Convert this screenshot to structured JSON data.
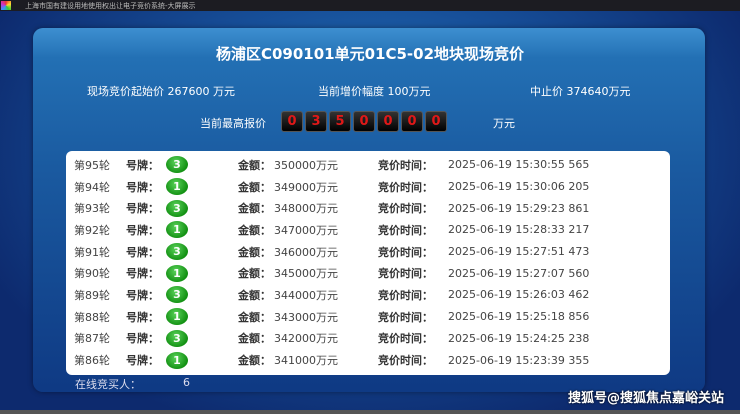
{
  "window": {
    "title": "上海市国有建设用地使用权出让电子竞价系统-大屏展示"
  },
  "heading": "杨浦区C090101单元01C5-02地块现场竞价",
  "info": {
    "start_price": "现场竞价起始价 267600 万元",
    "increment": "当前增价幅度 100万元",
    "stop_price": "中止价 374640万元"
  },
  "highest": {
    "label": "当前最高报价",
    "digits": [
      "0",
      "3",
      "5",
      "0",
      "0",
      "0",
      "0"
    ],
    "unit": "万元"
  },
  "labels": {
    "plate": "号牌：",
    "amount": "金额：",
    "time": "竞价时间："
  },
  "bids": [
    {
      "round": "第95轮",
      "plate": "3",
      "amount": "350000万元",
      "time": "2025-06-19 15:30:55 565"
    },
    {
      "round": "第94轮",
      "plate": "1",
      "amount": "349000万元",
      "time": "2025-06-19 15:30:06 205"
    },
    {
      "round": "第93轮",
      "plate": "3",
      "amount": "348000万元",
      "time": "2025-06-19 15:29:23 861"
    },
    {
      "round": "第92轮",
      "plate": "1",
      "amount": "347000万元",
      "time": "2025-06-19 15:28:33 217"
    },
    {
      "round": "第91轮",
      "plate": "3",
      "amount": "346000万元",
      "time": "2025-06-19 15:27:51 473"
    },
    {
      "round": "第90轮",
      "plate": "1",
      "amount": "345000万元",
      "time": "2025-06-19 15:27:07 560"
    },
    {
      "round": "第89轮",
      "plate": "3",
      "amount": "344000万元",
      "time": "2025-06-19 15:26:03 462"
    },
    {
      "round": "第88轮",
      "plate": "1",
      "amount": "343000万元",
      "time": "2025-06-19 15:25:18 856"
    },
    {
      "round": "第87轮",
      "plate": "3",
      "amount": "342000万元",
      "time": "2025-06-19 15:24:25 238"
    },
    {
      "round": "第86轮",
      "plate": "1",
      "amount": "341000万元",
      "time": "2025-06-19 15:23:39 355"
    }
  ],
  "online": {
    "label": "在线竞买人：",
    "count": "6"
  },
  "watermark": "搜狐号@搜狐焦点嘉峪关站",
  "colors": {
    "digit": "#e01818",
    "badge": "#139113"
  }
}
